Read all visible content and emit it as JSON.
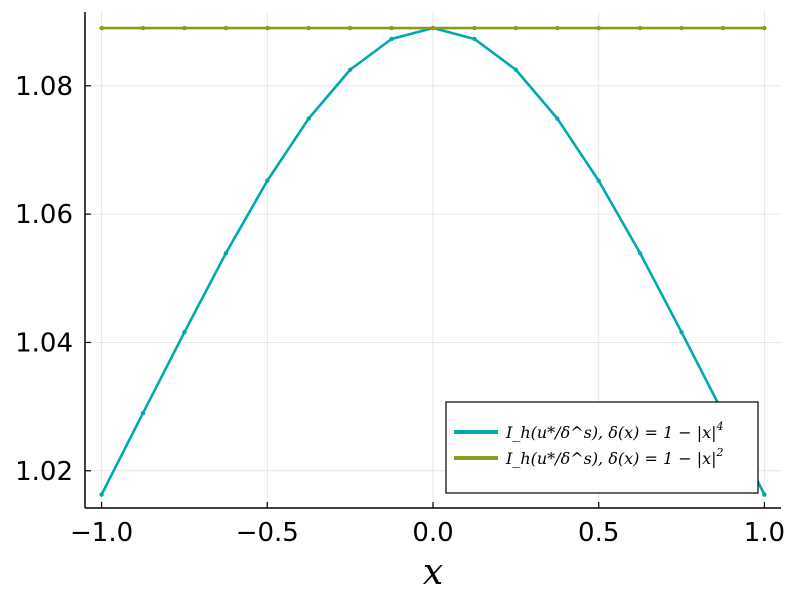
{
  "chart_data": {
    "type": "line",
    "title": "",
    "xlabel": "x",
    "ylabel": "",
    "xlim": [
      -1.05,
      1.05
    ],
    "ylim": [
      1.0142,
      1.0915
    ],
    "grid": true,
    "legend_position": "bottom-right",
    "xticks": [
      -1.0,
      -0.5,
      0.0,
      0.5,
      1.0
    ],
    "xtick_labels": [
      "−1.0",
      "−0.5",
      "0.0",
      "0.5",
      "1.0"
    ],
    "yticks": [
      1.02,
      1.04,
      1.06,
      1.08
    ],
    "ytick_labels": [
      "1.02",
      "1.04",
      "1.06",
      "1.08"
    ],
    "x": [
      -1.0,
      -0.875,
      -0.75,
      -0.625,
      -0.5,
      -0.375,
      -0.25,
      -0.125,
      0.0,
      0.125,
      0.25,
      0.375,
      0.5,
      0.625,
      0.75,
      0.875,
      1.0
    ],
    "series": [
      {
        "name_main": "I_h(u*/δ^s), δ(x) = 1 − |x|",
        "name_exp": "4",
        "color": "#00a9ad",
        "values": [
          1.0163,
          1.029,
          1.0416,
          1.0539,
          1.0652,
          1.0749,
          1.0825,
          1.0873,
          1.089,
          1.0873,
          1.0825,
          1.0749,
          1.0652,
          1.0539,
          1.0416,
          1.029,
          1.0163
        ]
      },
      {
        "name_main": "I_h(u*/δ^s), δ(x) = 1 − |x|",
        "name_exp": "2",
        "color": "#8a9a1f",
        "values": [
          1.089,
          1.089,
          1.089,
          1.089,
          1.089,
          1.089,
          1.089,
          1.089,
          1.089,
          1.089,
          1.089,
          1.089,
          1.089,
          1.089,
          1.089,
          1.089,
          1.089
        ]
      }
    ]
  }
}
